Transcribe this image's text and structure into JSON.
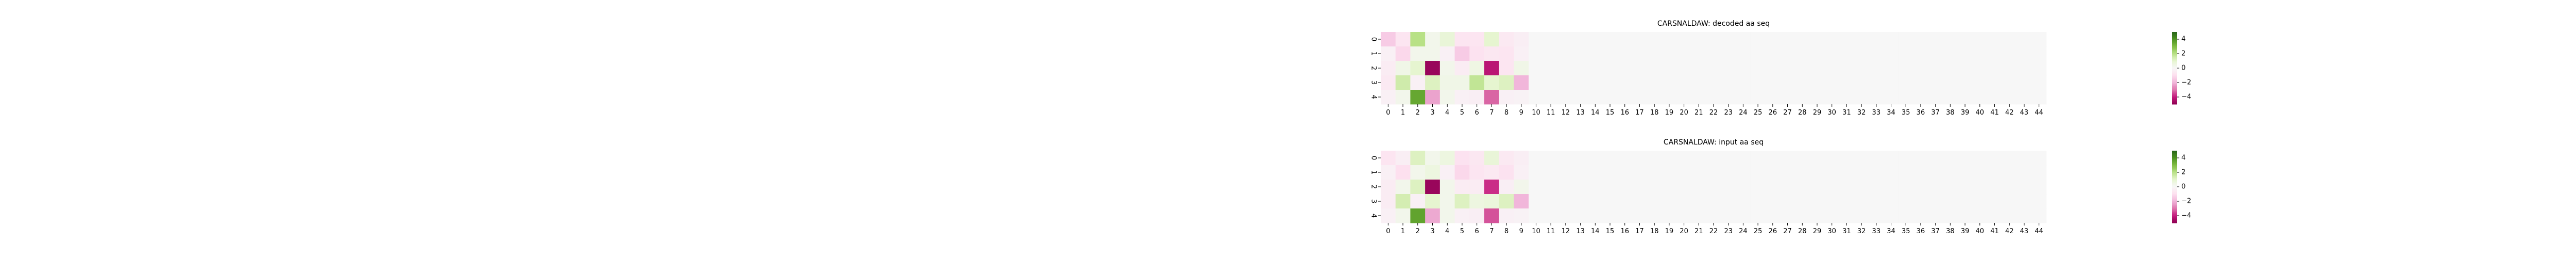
{
  "chart_data": [
    {
      "type": "heatmap",
      "title": "CARSNALDAW: decoded aa seq",
      "x_ticks": [
        "0",
        "1",
        "2",
        "3",
        "4",
        "5",
        "6",
        "7",
        "8",
        "9",
        "10",
        "11",
        "12",
        "13",
        "14",
        "15",
        "16",
        "17",
        "18",
        "19",
        "20",
        "21",
        "22",
        "23",
        "24",
        "25",
        "26",
        "27",
        "28",
        "29",
        "30",
        "31",
        "32",
        "33",
        "34",
        "35",
        "36",
        "37",
        "38",
        "39",
        "40",
        "41",
        "42",
        "43",
        "44"
      ],
      "y_ticks": [
        "0",
        "1",
        "2",
        "3",
        "4"
      ],
      "colorbar": {
        "colormap": "PiYG",
        "vmin": -5,
        "vmax": 5,
        "ticks": [
          4,
          2,
          0,
          -2,
          -4
        ],
        "tick_labels": [
          "4",
          "2",
          "0",
          "−2",
          "−4"
        ]
      },
      "values": [
        [
          -1.5,
          -0.8,
          2.0,
          0.3,
          0.8,
          -0.8,
          -0.8,
          1.0,
          -0.6,
          -0.4,
          0,
          0,
          0,
          0,
          0,
          0,
          0,
          0,
          0,
          0,
          0,
          0,
          0,
          0,
          0,
          0,
          0,
          0,
          0,
          0,
          0,
          0,
          0,
          0,
          0,
          0,
          0,
          0,
          0,
          0,
          0,
          0,
          0,
          0,
          0
        ],
        [
          -0.3,
          -1.2,
          0.3,
          0.3,
          -0.3,
          -1.5,
          -0.9,
          -0.7,
          -0.8,
          -0.3,
          0,
          0,
          0,
          0,
          0,
          0,
          0,
          0,
          0,
          0,
          0,
          0,
          0,
          0,
          0,
          0,
          0,
          0,
          0,
          0,
          0,
          0,
          0,
          0,
          0,
          0,
          0,
          0,
          0,
          0,
          0,
          0,
          0,
          0,
          0
        ],
        [
          -0.5,
          0.4,
          1.0,
          -4.8,
          0.3,
          -0.5,
          0.5,
          -4.2,
          -0.8,
          0.4,
          0,
          0,
          0,
          0,
          0,
          0,
          0,
          0,
          0,
          0,
          0,
          0,
          0,
          0,
          0,
          0,
          0,
          0,
          0,
          0,
          0,
          0,
          0,
          0,
          0,
          0,
          0,
          0,
          0,
          0,
          0,
          0,
          0,
          0,
          0
        ],
        [
          -0.6,
          1.5,
          -0.3,
          1.2,
          0.4,
          0.4,
          1.8,
          1.0,
          1.2,
          -2.0,
          0,
          0,
          0,
          0,
          0,
          0,
          0,
          0,
          0,
          0,
          0,
          0,
          0,
          0,
          0,
          0,
          0,
          0,
          0,
          0,
          0,
          0,
          0,
          0,
          0,
          0,
          0,
          0,
          0,
          0,
          0,
          0,
          0,
          0,
          0
        ],
        [
          -0.3,
          0.3,
          3.5,
          -2.3,
          0.3,
          -0.3,
          -0.4,
          -3.2,
          -0.3,
          -0.2,
          0,
          0,
          0,
          0,
          0,
          0,
          0,
          0,
          0,
          0,
          0,
          0,
          0,
          0,
          0,
          0,
          0,
          0,
          0,
          0,
          0,
          0,
          0,
          0,
          0,
          0,
          0,
          0,
          0,
          0,
          0,
          0,
          0,
          0,
          0
        ]
      ]
    },
    {
      "type": "heatmap",
      "title": "CARSNALDAW: input aa seq",
      "x_ticks": [
        "0",
        "1",
        "2",
        "3",
        "4",
        "5",
        "6",
        "7",
        "8",
        "9",
        "10",
        "11",
        "12",
        "13",
        "14",
        "15",
        "16",
        "17",
        "18",
        "19",
        "20",
        "21",
        "22",
        "23",
        "24",
        "25",
        "26",
        "27",
        "28",
        "29",
        "30",
        "31",
        "32",
        "33",
        "34",
        "35",
        "36",
        "37",
        "38",
        "39",
        "40",
        "41",
        "42",
        "43",
        "44"
      ],
      "y_ticks": [
        "0",
        "1",
        "2",
        "3",
        "4"
      ],
      "colorbar": {
        "colormap": "PiYG",
        "vmin": -5,
        "vmax": 5,
        "ticks": [
          4,
          2,
          0,
          -2,
          -4
        ],
        "tick_labels": [
          "4",
          "2",
          "0",
          "−2",
          "−4"
        ]
      },
      "values": [
        [
          -0.8,
          -0.4,
          1.2,
          0.3,
          0.6,
          -0.9,
          -0.7,
          0.8,
          -0.6,
          -0.4,
          0,
          0,
          0,
          0,
          0,
          0,
          0,
          0,
          0,
          0,
          0,
          0,
          0,
          0,
          0,
          0,
          0,
          0,
          0,
          0,
          0,
          0,
          0,
          0,
          0,
          0,
          0,
          0,
          0,
          0,
          0,
          0,
          0,
          0,
          0
        ],
        [
          -0.3,
          -1.0,
          0.3,
          0.6,
          -0.3,
          -1.2,
          -0.8,
          -0.6,
          -0.9,
          -0.3,
          0,
          0,
          0,
          0,
          0,
          0,
          0,
          0,
          0,
          0,
          0,
          0,
          0,
          0,
          0,
          0,
          0,
          0,
          0,
          0,
          0,
          0,
          0,
          0,
          0,
          0,
          0,
          0,
          0,
          0,
          0,
          0,
          0,
          0,
          0
        ],
        [
          -0.5,
          0.3,
          1.2,
          -4.8,
          0.3,
          -0.5,
          -0.5,
          -3.8,
          -0.4,
          0.3,
          0,
          0,
          0,
          0,
          0,
          0,
          0,
          0,
          0,
          0,
          0,
          0,
          0,
          0,
          0,
          0,
          0,
          0,
          0,
          0,
          0,
          0,
          0,
          0,
          0,
          0,
          0,
          0,
          0,
          0,
          0,
          0,
          0,
          0,
          0
        ],
        [
          -0.5,
          1.4,
          -0.3,
          1.0,
          0.3,
          1.2,
          0.6,
          0.7,
          1.2,
          -2.0,
          0,
          0,
          0,
          0,
          0,
          0,
          0,
          0,
          0,
          0,
          0,
          0,
          0,
          0,
          0,
          0,
          0,
          0,
          0,
          0,
          0,
          0,
          0,
          0,
          0,
          0,
          0,
          0,
          0,
          0,
          0,
          0,
          0,
          0,
          0
        ],
        [
          -0.3,
          0.3,
          3.6,
          -2.2,
          0.3,
          -0.3,
          -0.4,
          -3.4,
          -0.3,
          -0.2,
          0,
          0,
          0,
          0,
          0,
          0,
          0,
          0,
          0,
          0,
          0,
          0,
          0,
          0,
          0,
          0,
          0,
          0,
          0,
          0,
          0,
          0,
          0,
          0,
          0,
          0,
          0,
          0,
          0,
          0,
          0,
          0,
          0,
          0,
          0
        ]
      ]
    }
  ]
}
